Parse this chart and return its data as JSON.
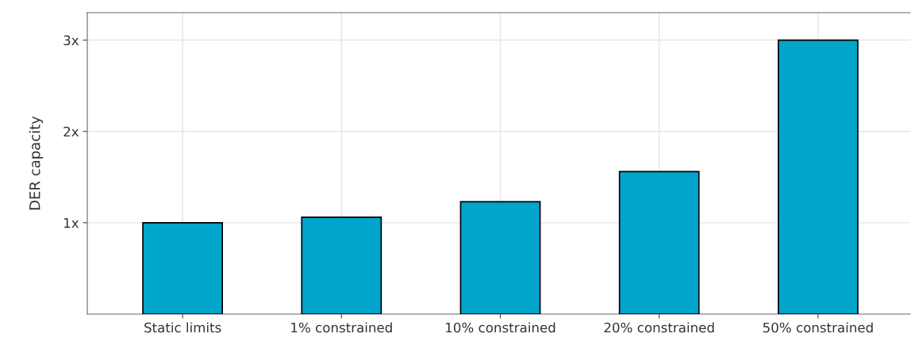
{
  "chart_data": {
    "type": "bar",
    "ylabel": "DER capacity",
    "categories": [
      "Static limits",
      "1% constrained",
      "10% constrained",
      "20% constrained",
      "50% constrained"
    ],
    "values": [
      1.0,
      1.06,
      1.23,
      1.56,
      3.0
    ],
    "color": "#00a5cc",
    "ylim": [
      0,
      3.3
    ],
    "yticks": [
      {
        "value": 1,
        "label": "1x"
      },
      {
        "value": 2,
        "label": "2x"
      },
      {
        "value": 3,
        "label": "3x"
      }
    ],
    "grid": true
  }
}
